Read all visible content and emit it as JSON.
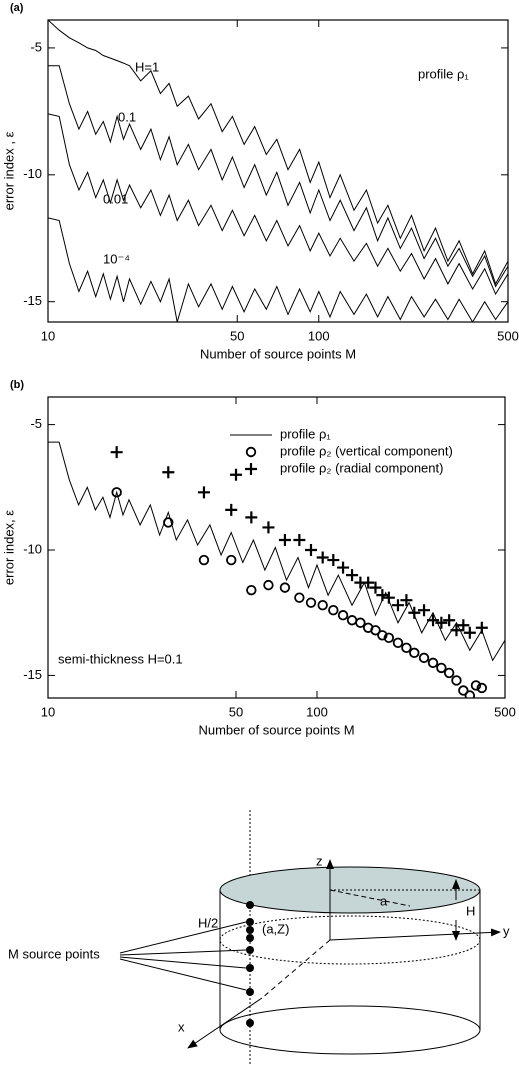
{
  "chart_data": [
    {
      "type": "line",
      "title": "(a)",
      "ylabel": "error index , ε",
      "xlabel": "Number of source points M",
      "annotation": "profile ρ₁",
      "log_x": true,
      "xlim": [
        10,
        500
      ],
      "xticks": [
        10,
        50,
        100,
        500
      ],
      "ylim": [
        -15.8,
        -3.9
      ],
      "yticks": [
        -5,
        -10,
        -15
      ],
      "x": [
        10,
        11,
        12,
        13,
        14,
        15,
        16,
        17,
        18,
        19,
        20,
        22,
        24,
        26,
        28,
        30,
        33,
        36,
        40,
        44,
        48,
        53,
        58,
        64,
        70,
        77,
        85,
        93,
        100,
        110,
        120,
        135,
        150,
        165,
        180,
        200,
        220,
        245,
        270,
        300,
        330,
        370,
        410,
        450,
        500
      ],
      "series": [
        {
          "name": "H=1",
          "color": "#000000",
          "values": [
            -3.9,
            -4.3,
            -4.6,
            -4.8,
            -5.0,
            -5.1,
            -5.3,
            -5.4,
            -5.5,
            -5.6,
            -5.7,
            -6.3,
            -5.9,
            -6.8,
            -6.4,
            -7.3,
            -6.9,
            -7.8,
            -7.2,
            -8.3,
            -7.7,
            -8.8,
            -8.1,
            -9.2,
            -8.6,
            -9.8,
            -9.0,
            -10.3,
            -9.5,
            -10.9,
            -10.0,
            -11.4,
            -10.6,
            -11.9,
            -11.2,
            -12.5,
            -11.6,
            -13.0,
            -12.1,
            -13.4,
            -12.6,
            -13.9,
            -13.0,
            -14.3,
            -13.4
          ]
        },
        {
          "name": "0.1",
          "color": "#000000",
          "values": [
            -5.7,
            -5.7,
            -7.2,
            -8.2,
            -7.5,
            -8.4,
            -7.9,
            -8.7,
            -7.7,
            -8.6,
            -8.0,
            -9.0,
            -8.2,
            -9.4,
            -8.5,
            -9.6,
            -8.8,
            -9.8,
            -9.0,
            -10.2,
            -9.3,
            -10.5,
            -9.6,
            -10.8,
            -9.9,
            -11.2,
            -10.3,
            -11.5,
            -10.6,
            -11.8,
            -11.0,
            -12.2,
            -11.3,
            -12.6,
            -11.7,
            -12.9,
            -12.1,
            -13.3,
            -12.5,
            -13.6,
            -12.9,
            -14.0,
            -13.2,
            -14.4,
            -13.6
          ]
        },
        {
          "name": "0.01",
          "color": "#000000",
          "values": [
            -7.6,
            -7.7,
            -9.6,
            -10.6,
            -9.9,
            -10.9,
            -10.2,
            -11.1,
            -10.2,
            -11.0,
            -10.4,
            -11.3,
            -10.6,
            -11.6,
            -10.8,
            -11.8,
            -11.0,
            -12.0,
            -11.2,
            -12.2,
            -11.4,
            -12.4,
            -11.6,
            -12.6,
            -11.8,
            -12.8,
            -12.0,
            -13.0,
            -12.3,
            -13.2,
            -12.5,
            -13.4,
            -12.7,
            -13.6,
            -12.9,
            -13.8,
            -13.1,
            -14.1,
            -13.3,
            -14.3,
            -13.5,
            -14.5,
            -13.7,
            -14.7,
            -13.9
          ]
        },
        {
          "name": "10⁻⁴",
          "color": "#000000",
          "values": [
            -11.7,
            -11.8,
            -13.5,
            -14.6,
            -13.8,
            -14.8,
            -13.9,
            -14.9,
            -14.0,
            -15.0,
            -14.1,
            -15.1,
            -14.2,
            -15.0,
            -14.1,
            -15.8,
            -14.3,
            -15.2,
            -14.3,
            -15.3,
            -14.4,
            -15.4,
            -14.5,
            -15.3,
            -14.4,
            -15.5,
            -14.5,
            -15.4,
            -14.6,
            -15.6,
            -14.6,
            -15.5,
            -14.7,
            -15.6,
            -14.8,
            -15.7,
            -14.8,
            -15.6,
            -14.9,
            -15.7,
            -14.9,
            -15.8,
            -15.0,
            -15.7,
            -15.0
          ]
        }
      ]
    },
    {
      "type": "line",
      "title": "(b)",
      "ylabel": "error index, ε",
      "xlabel": "Number of source points M",
      "annotation": "semi-thickness H=0.1",
      "log_x": true,
      "xlim": [
        10,
        500
      ],
      "xticks": [
        10,
        50,
        100,
        500
      ],
      "ylim": [
        -15.9,
        -3.9
      ],
      "yticks": [
        -5,
        -10,
        -15
      ],
      "x": [
        10,
        11,
        12,
        13,
        14,
        15,
        16,
        17,
        18,
        19,
        20,
        22,
        24,
        26,
        28,
        30,
        33,
        36,
        40,
        44,
        48,
        53,
        58,
        64,
        70,
        77,
        85,
        93,
        100,
        110,
        120,
        135,
        150,
        165,
        180,
        200,
        220,
        245,
        270,
        300,
        330,
        370,
        410,
        450,
        500
      ],
      "series": [
        {
          "name": "profile ρ₁",
          "color": "#000000",
          "marker": "line",
          "values": [
            -5.7,
            -5.7,
            -7.2,
            -8.2,
            -7.5,
            -8.4,
            -7.9,
            -8.7,
            -7.7,
            -8.6,
            -8.0,
            -9.0,
            -8.2,
            -9.4,
            -8.5,
            -9.6,
            -8.8,
            -9.8,
            -9.0,
            -10.2,
            -9.3,
            -10.5,
            -9.6,
            -10.8,
            -9.9,
            -11.2,
            -10.3,
            -11.5,
            -10.6,
            -11.8,
            -11.0,
            -12.2,
            -11.3,
            -12.6,
            -11.7,
            -12.9,
            -12.1,
            -13.3,
            -12.5,
            -13.6,
            -12.9,
            -14.0,
            -13.2,
            -14.4,
            -13.6
          ]
        },
        {
          "name": "profile ρ₂ (vertical component)",
          "color": "#000000",
          "marker": "circle",
          "x": [
            18,
            28,
            38,
            48,
            57,
            66,
            76,
            86,
            95,
            105,
            115,
            125,
            135,
            145,
            155,
            165,
            175,
            185,
            200,
            215,
            230,
            250,
            270,
            290,
            310,
            330,
            350,
            370,
            390,
            410
          ],
          "values": [
            -7.7,
            -8.9,
            -10.4,
            -10.4,
            -11.6,
            -11.4,
            -11.5,
            -11.9,
            -12.1,
            -12.2,
            -12.4,
            -12.6,
            -12.8,
            -12.9,
            -13.1,
            -13.2,
            -13.4,
            -13.5,
            -13.7,
            -13.9,
            -14.1,
            -14.3,
            -14.5,
            -14.7,
            -14.9,
            -15.2,
            -15.6,
            -15.8,
            -15.4,
            -15.5
          ]
        },
        {
          "name": "profile ρ₂ (radial component)",
          "color": "#000000",
          "marker": "plus",
          "x": [
            18,
            28,
            38,
            48,
            50,
            57,
            66,
            76,
            86,
            95,
            105,
            115,
            125,
            135,
            145,
            155,
            165,
            175,
            185,
            200,
            215,
            230,
            250,
            270,
            290,
            310,
            330,
            350,
            370,
            410
          ],
          "values": [
            -6.1,
            -6.9,
            -7.7,
            -8.4,
            -7.0,
            -8.7,
            -9.1,
            -9.6,
            -9.6,
            -10.0,
            -10.3,
            -10.4,
            -10.7,
            -11.0,
            -11.3,
            -11.3,
            -11.5,
            -11.8,
            -11.9,
            -12.2,
            -12.0,
            -12.5,
            -12.4,
            -12.8,
            -12.9,
            -12.8,
            -13.2,
            -13.0,
            -13.3,
            -13.1
          ]
        }
      ]
    }
  ],
  "diagram": {
    "z": "z",
    "y": "y",
    "x": "x",
    "a": "a",
    "H": "H",
    "half": "H/2",
    "point": "(a,Z)",
    "sources": "M source points"
  }
}
